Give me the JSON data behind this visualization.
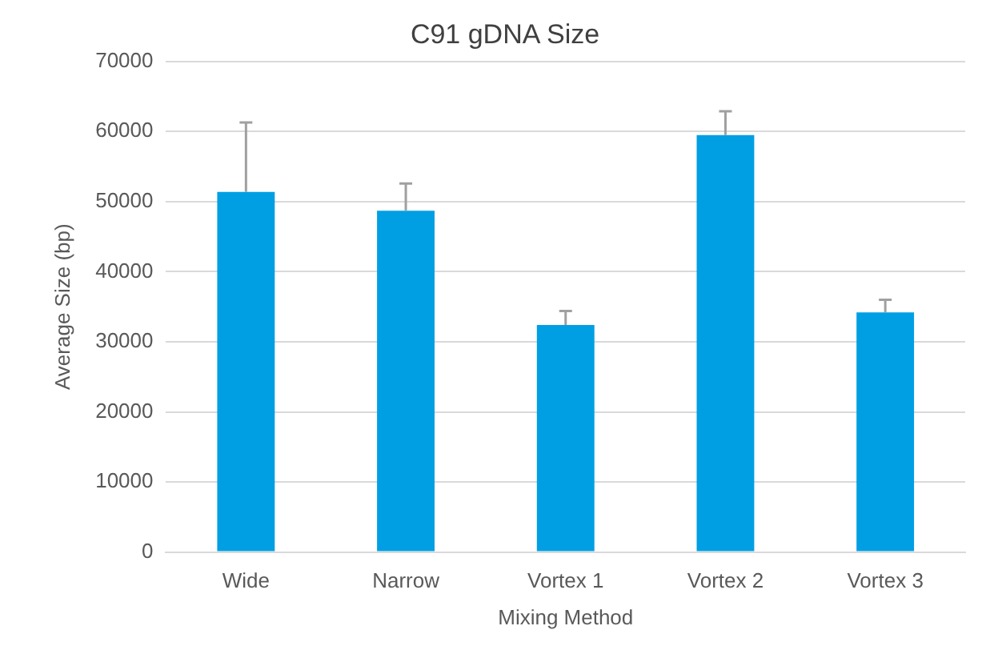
{
  "chart_data": {
    "type": "bar",
    "title": "C91 gDNA Size",
    "xlabel": "Mixing Method",
    "ylabel": "Average Size (bp)",
    "categories": [
      "Wide",
      "Narrow",
      "Vortex 1",
      "Vortex 2",
      "Vortex 3"
    ],
    "values": [
      51400,
      48700,
      32400,
      59500,
      34200
    ],
    "errors": [
      [
        51400,
        61300
      ],
      [
        48700,
        52600
      ],
      [
        32400,
        34400
      ],
      [
        59500,
        62900
      ],
      [
        34200,
        36000
      ]
    ],
    "color": "#009fe3",
    "ylim": [
      0,
      70000
    ],
    "yticks": [
      0,
      10000,
      20000,
      30000,
      40000,
      50000,
      60000,
      70000
    ],
    "grid": "y",
    "legend": false
  }
}
